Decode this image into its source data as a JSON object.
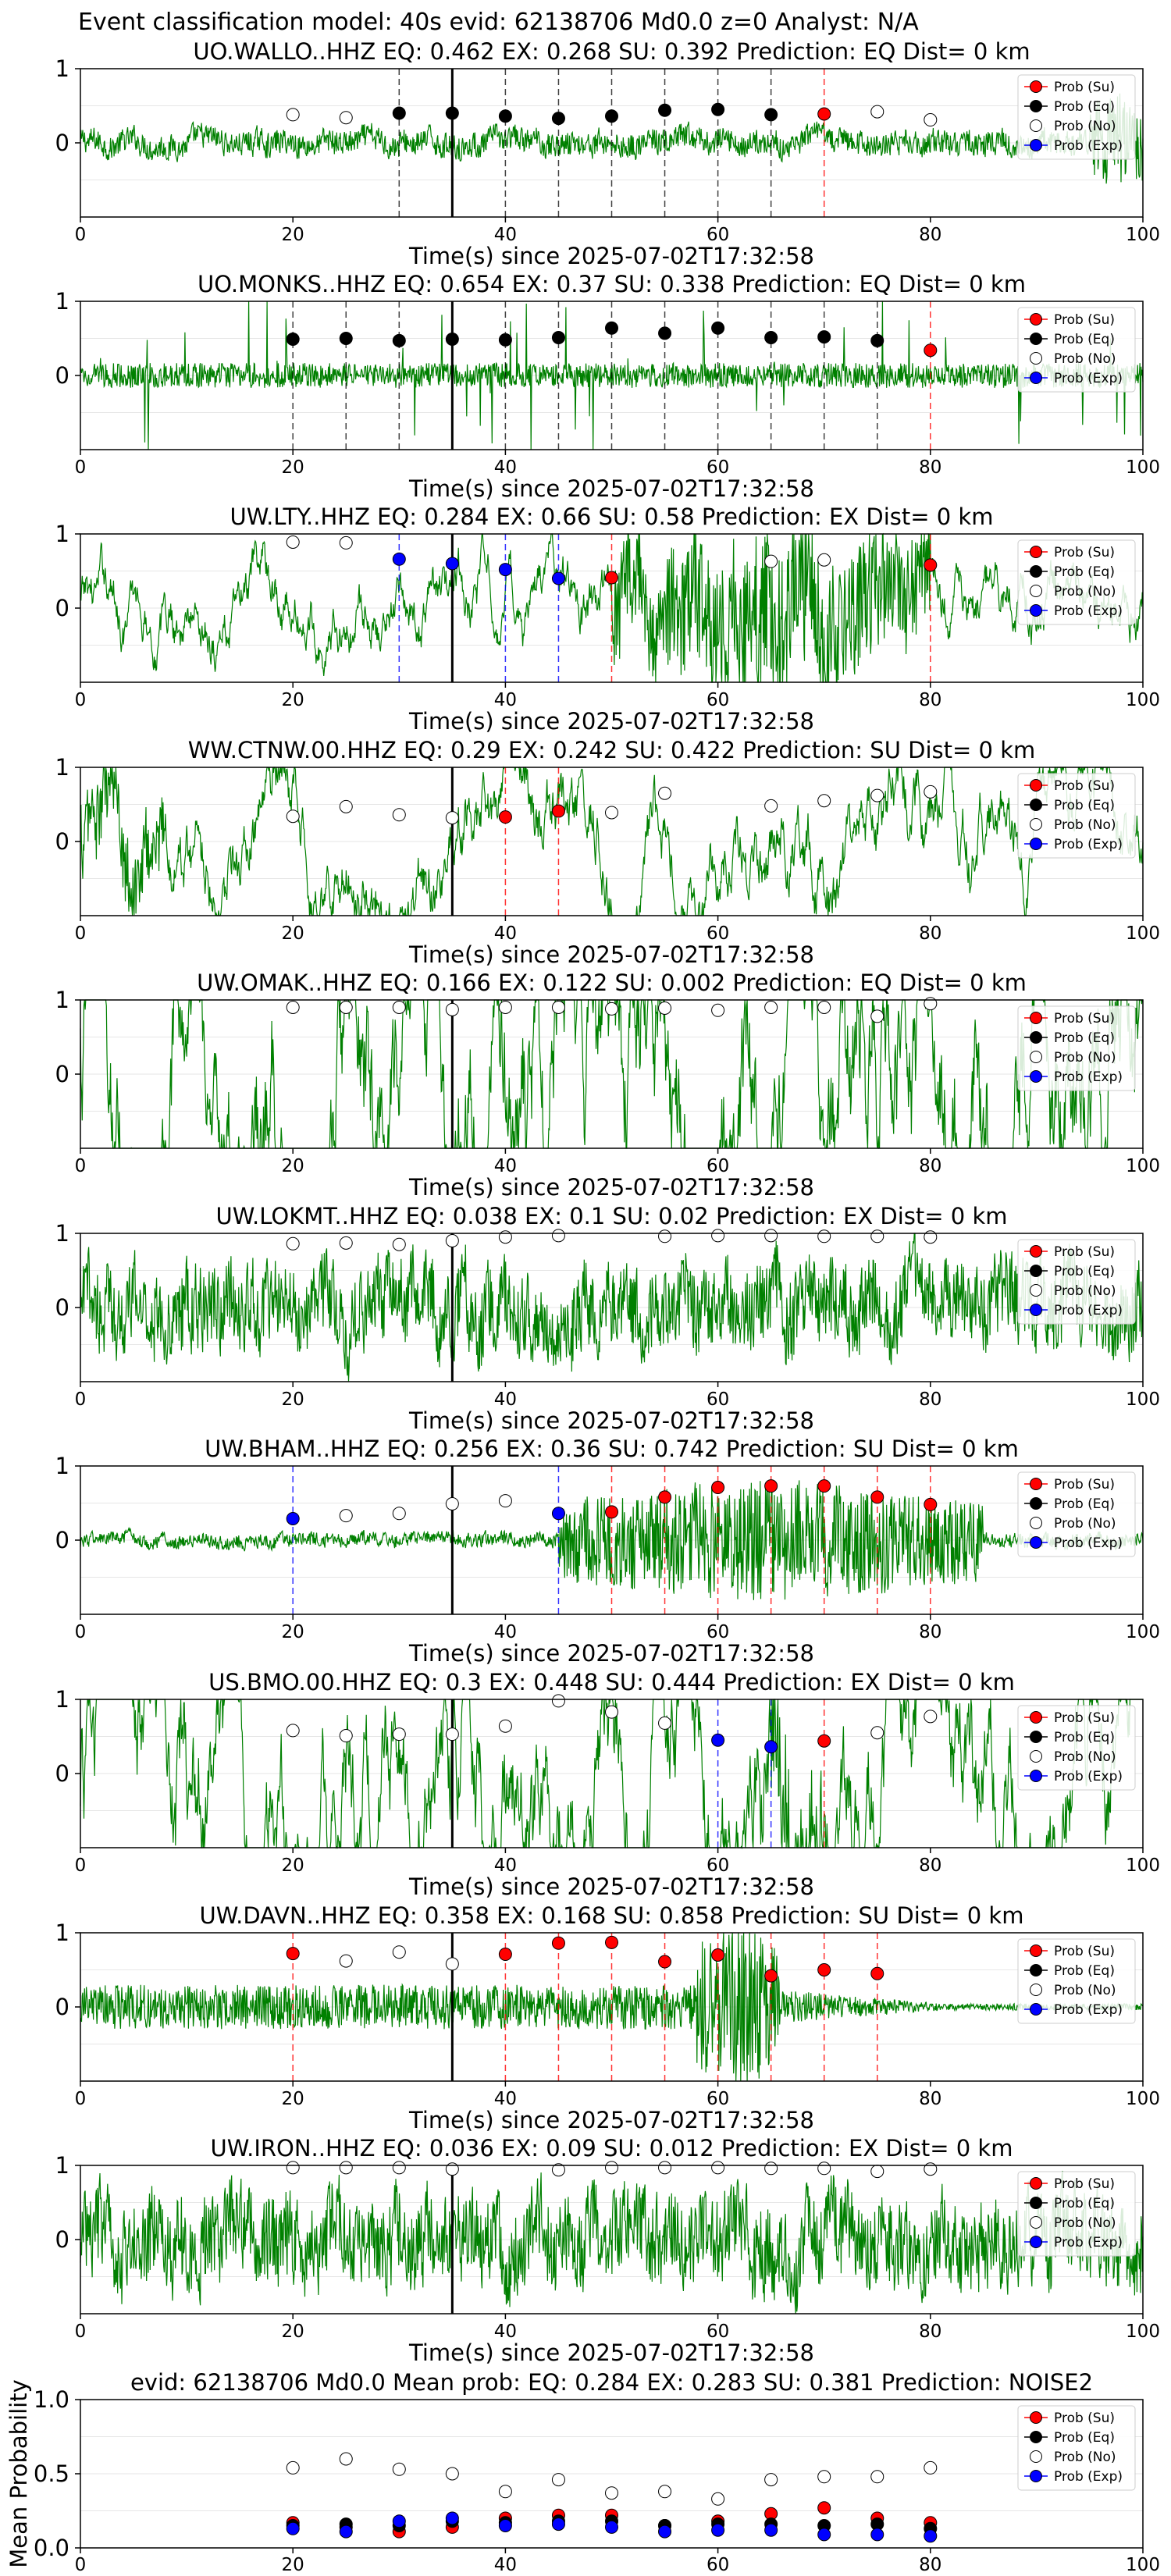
{
  "figure": {
    "suptitle": "Event classification model: 40s evid: 62138706 Md0.0 z=0 Analyst: N/A",
    "colors": {
      "waveform": "#008000",
      "su": "#ff0000",
      "eq": "#000000",
      "no": "#ffffff",
      "exp": "#0000ff",
      "arrival_line": "#000000"
    },
    "legend": [
      "Prob (Su)",
      "Prob (Eq)",
      "Prob (No)",
      "Prob (Exp)"
    ],
    "legend_placement": "top-right",
    "xlabel": "Time(s) since 2025-07-02T17:32:58",
    "x_ticks": [
      0,
      20,
      40,
      60,
      80,
      100
    ],
    "y_ticks": [
      0,
      1
    ],
    "arrival_time": 35
  },
  "chart_data": [
    {
      "type": "line",
      "title": "UO.WALLO..HHZ   EQ: 0.462   EX: 0.268   SU: 0.392   Prediction: EQ    Dist= 0 km",
      "xlim": [
        0,
        100
      ],
      "ylim": [
        -1,
        1
      ],
      "waveform": {
        "amp": 0.18,
        "style": "noise",
        "burst": [
          95,
          100,
          0.5
        ]
      },
      "points": [
        {
          "t": 20,
          "cls": "no",
          "p": 0.38
        },
        {
          "t": 25,
          "cls": "no",
          "p": 0.34
        },
        {
          "t": 30,
          "cls": "eq",
          "p": 0.4
        },
        {
          "t": 35,
          "cls": "eq",
          "p": 0.4
        },
        {
          "t": 40,
          "cls": "eq",
          "p": 0.36
        },
        {
          "t": 45,
          "cls": "eq",
          "p": 0.33
        },
        {
          "t": 50,
          "cls": "eq",
          "p": 0.36
        },
        {
          "t": 55,
          "cls": "eq",
          "p": 0.44
        },
        {
          "t": 60,
          "cls": "eq",
          "p": 0.45
        },
        {
          "t": 65,
          "cls": "eq",
          "p": 0.38
        },
        {
          "t": 70,
          "cls": "su",
          "p": 0.39
        },
        {
          "t": 75,
          "cls": "no",
          "p": 0.42
        },
        {
          "t": 80,
          "cls": "no",
          "p": 0.31
        }
      ]
    },
    {
      "type": "line",
      "title": "UO.MONKS..HHZ   EQ: 0.654   EX: 0.37   SU: 0.338   Prediction: EQ    Dist= 0 km",
      "xlim": [
        0,
        100
      ],
      "ylim": [
        -1,
        1
      ],
      "waveform": {
        "amp": 0.28,
        "style": "spiky",
        "burst": [
          0,
          0,
          0
        ]
      },
      "points": [
        {
          "t": 20,
          "cls": "eq",
          "p": 0.49
        },
        {
          "t": 25,
          "cls": "eq",
          "p": 0.5
        },
        {
          "t": 30,
          "cls": "eq",
          "p": 0.47
        },
        {
          "t": 35,
          "cls": "eq",
          "p": 0.49
        },
        {
          "t": 40,
          "cls": "eq",
          "p": 0.48
        },
        {
          "t": 45,
          "cls": "eq",
          "p": 0.51
        },
        {
          "t": 50,
          "cls": "eq",
          "p": 0.64
        },
        {
          "t": 55,
          "cls": "eq",
          "p": 0.57
        },
        {
          "t": 60,
          "cls": "eq",
          "p": 0.64
        },
        {
          "t": 65,
          "cls": "eq",
          "p": 0.51
        },
        {
          "t": 70,
          "cls": "eq",
          "p": 0.52
        },
        {
          "t": 75,
          "cls": "eq",
          "p": 0.47
        },
        {
          "t": 80,
          "cls": "su",
          "p": 0.34
        }
      ]
    },
    {
      "type": "line",
      "title": "UW.LTY..HHZ   EQ: 0.284   EX: 0.66   SU: 0.58   Prediction: EX    Dist= 0 km",
      "xlim": [
        0,
        100
      ],
      "ylim": [
        -1,
        1
      ],
      "waveform": {
        "amp": 0.15,
        "style": "smooth",
        "burst": [
          50,
          80,
          0.9
        ]
      },
      "points": [
        {
          "t": 20,
          "cls": "no",
          "p": 0.89
        },
        {
          "t": 25,
          "cls": "no",
          "p": 0.88
        },
        {
          "t": 30,
          "cls": "exp",
          "p": 0.66
        },
        {
          "t": 35,
          "cls": "exp",
          "p": 0.6
        },
        {
          "t": 40,
          "cls": "exp",
          "p": 0.52
        },
        {
          "t": 45,
          "cls": "exp",
          "p": 0.4
        },
        {
          "t": 50,
          "cls": "su",
          "p": 0.41
        },
        {
          "t": 65,
          "cls": "no",
          "p": 0.63
        },
        {
          "t": 70,
          "cls": "no",
          "p": 0.65
        },
        {
          "t": 80,
          "cls": "su",
          "p": 0.58
        }
      ]
    },
    {
      "type": "line",
      "title": "WW.CTNW.00.HHZ   EQ: 0.29   EX: 0.242   SU: 0.422   Prediction: SU    Dist= 0 km",
      "xlim": [
        0,
        100
      ],
      "ylim": [
        -1,
        1
      ],
      "waveform": {
        "amp": 0.2,
        "style": "smooth",
        "burst": [
          0,
          8,
          0.4
        ]
      },
      "points": [
        {
          "t": 20,
          "cls": "no",
          "p": 0.34
        },
        {
          "t": 25,
          "cls": "no",
          "p": 0.47
        },
        {
          "t": 30,
          "cls": "no",
          "p": 0.36
        },
        {
          "t": 35,
          "cls": "no",
          "p": 0.32
        },
        {
          "t": 40,
          "cls": "su",
          "p": 0.33
        },
        {
          "t": 45,
          "cls": "su",
          "p": 0.41
        },
        {
          "t": 50,
          "cls": "no",
          "p": 0.39
        },
        {
          "t": 55,
          "cls": "no",
          "p": 0.65
        },
        {
          "t": 65,
          "cls": "no",
          "p": 0.48
        },
        {
          "t": 70,
          "cls": "no",
          "p": 0.55
        },
        {
          "t": 75,
          "cls": "no",
          "p": 0.62
        },
        {
          "t": 80,
          "cls": "no",
          "p": 0.67
        }
      ]
    },
    {
      "type": "line",
      "title": "UW.OMAK..HHZ   EQ: 0.166   EX: 0.122   SU: 0.002   Prediction: EQ    Dist= 0 km",
      "xlim": [
        0,
        100
      ],
      "ylim": [
        -1,
        1
      ],
      "waveform": {
        "amp": 0.55,
        "style": "smooth",
        "burst": [
          0,
          0,
          0
        ]
      },
      "points": [
        {
          "t": 20,
          "cls": "no",
          "p": 0.9
        },
        {
          "t": 25,
          "cls": "no",
          "p": 0.9
        },
        {
          "t": 30,
          "cls": "no",
          "p": 0.9
        },
        {
          "t": 35,
          "cls": "no",
          "p": 0.87
        },
        {
          "t": 40,
          "cls": "no",
          "p": 0.9
        },
        {
          "t": 45,
          "cls": "no",
          "p": 0.9
        },
        {
          "t": 50,
          "cls": "no",
          "p": 0.88
        },
        {
          "t": 55,
          "cls": "no",
          "p": 0.89
        },
        {
          "t": 60,
          "cls": "no",
          "p": 0.86
        },
        {
          "t": 65,
          "cls": "no",
          "p": 0.9
        },
        {
          "t": 70,
          "cls": "no",
          "p": 0.9
        },
        {
          "t": 75,
          "cls": "no",
          "p": 0.78
        },
        {
          "t": 80,
          "cls": "no",
          "p": 0.95
        }
      ]
    },
    {
      "type": "line",
      "title": "UW.LOKMT..HHZ   EQ: 0.038   EX: 0.1   SU: 0.02   Prediction: EX    Dist= 0 km",
      "xlim": [
        0,
        100
      ],
      "ylim": [
        -1,
        1
      ],
      "waveform": {
        "amp": 0.6,
        "style": "noise",
        "burst": [
          0,
          0,
          0
        ]
      },
      "points": [
        {
          "t": 20,
          "cls": "no",
          "p": 0.86
        },
        {
          "t": 25,
          "cls": "no",
          "p": 0.87
        },
        {
          "t": 30,
          "cls": "no",
          "p": 0.85
        },
        {
          "t": 35,
          "cls": "no",
          "p": 0.9
        },
        {
          "t": 40,
          "cls": "no",
          "p": 0.95
        },
        {
          "t": 45,
          "cls": "no",
          "p": 0.97
        },
        {
          "t": 55,
          "cls": "no",
          "p": 0.96
        },
        {
          "t": 60,
          "cls": "no",
          "p": 0.97
        },
        {
          "t": 65,
          "cls": "no",
          "p": 0.97
        },
        {
          "t": 70,
          "cls": "no",
          "p": 0.96
        },
        {
          "t": 75,
          "cls": "no",
          "p": 0.96
        },
        {
          "t": 80,
          "cls": "no",
          "p": 0.95
        }
      ]
    },
    {
      "type": "line",
      "title": "UW.BHAM..HHZ   EQ: 0.256   EX: 0.36   SU: 0.742   Prediction: SU    Dist= 0 km",
      "xlim": [
        0,
        100
      ],
      "ylim": [
        -1,
        1
      ],
      "waveform": {
        "amp": 0.1,
        "style": "noise",
        "burst": [
          45,
          85,
          0.75
        ]
      },
      "points": [
        {
          "t": 20,
          "cls": "exp",
          "p": 0.29
        },
        {
          "t": 25,
          "cls": "no",
          "p": 0.33
        },
        {
          "t": 30,
          "cls": "no",
          "p": 0.36
        },
        {
          "t": 35,
          "cls": "no",
          "p": 0.49
        },
        {
          "t": 40,
          "cls": "no",
          "p": 0.53
        },
        {
          "t": 45,
          "cls": "exp",
          "p": 0.36
        },
        {
          "t": 50,
          "cls": "su",
          "p": 0.38
        },
        {
          "t": 55,
          "cls": "su",
          "p": 0.58
        },
        {
          "t": 60,
          "cls": "su",
          "p": 0.71
        },
        {
          "t": 65,
          "cls": "su",
          "p": 0.73
        },
        {
          "t": 70,
          "cls": "su",
          "p": 0.73
        },
        {
          "t": 75,
          "cls": "su",
          "p": 0.58
        },
        {
          "t": 80,
          "cls": "su",
          "p": 0.48
        }
      ]
    },
    {
      "type": "line",
      "title": "US.BMO.00.HHZ   EQ: 0.3   EX: 0.448   SU: 0.444   Prediction: EX    Dist= 0 km",
      "xlim": [
        0,
        100
      ],
      "ylim": [
        -1,
        1
      ],
      "waveform": {
        "amp": 0.4,
        "style": "smooth",
        "burst": [
          65,
          70,
          0.8
        ]
      },
      "points": [
        {
          "t": 20,
          "cls": "no",
          "p": 0.58
        },
        {
          "t": 25,
          "cls": "no",
          "p": 0.51
        },
        {
          "t": 30,
          "cls": "no",
          "p": 0.53
        },
        {
          "t": 35,
          "cls": "no",
          "p": 0.53
        },
        {
          "t": 40,
          "cls": "no",
          "p": 0.64
        },
        {
          "t": 45,
          "cls": "no",
          "p": 0.98
        },
        {
          "t": 50,
          "cls": "no",
          "p": 0.83
        },
        {
          "t": 55,
          "cls": "no",
          "p": 0.68
        },
        {
          "t": 60,
          "cls": "exp",
          "p": 0.45
        },
        {
          "t": 65,
          "cls": "exp",
          "p": 0.36
        },
        {
          "t": 70,
          "cls": "su",
          "p": 0.44
        },
        {
          "t": 75,
          "cls": "no",
          "p": 0.55
        },
        {
          "t": 80,
          "cls": "no",
          "p": 0.77
        }
      ]
    },
    {
      "type": "line",
      "title": "UW.DAVN..HHZ   EQ: 0.358   EX: 0.168   SU: 0.858   Prediction: SU    Dist= 0 km",
      "xlim": [
        0,
        100
      ],
      "ylim": [
        -1,
        1
      ],
      "waveform": {
        "amp": 0.2,
        "style": "decay",
        "burst": [
          58,
          66,
          0.9
        ]
      },
      "points": [
        {
          "t": 20,
          "cls": "su",
          "p": 0.72
        },
        {
          "t": 25,
          "cls": "no",
          "p": 0.62
        },
        {
          "t": 30,
          "cls": "no",
          "p": 0.74
        },
        {
          "t": 35,
          "cls": "no",
          "p": 0.58
        },
        {
          "t": 40,
          "cls": "su",
          "p": 0.71
        },
        {
          "t": 45,
          "cls": "su",
          "p": 0.86
        },
        {
          "t": 50,
          "cls": "su",
          "p": 0.87
        },
        {
          "t": 55,
          "cls": "su",
          "p": 0.61
        },
        {
          "t": 60,
          "cls": "su",
          "p": 0.7
        },
        {
          "t": 65,
          "cls": "su",
          "p": 0.42
        },
        {
          "t": 70,
          "cls": "su",
          "p": 0.5
        },
        {
          "t": 75,
          "cls": "su",
          "p": 0.45
        }
      ]
    },
    {
      "type": "line",
      "title": "UW.IRON..HHZ   EQ: 0.036   EX: 0.09   SU: 0.012   Prediction: EX    Dist= 0 km",
      "xlim": [
        0,
        100
      ],
      "ylim": [
        -1,
        1
      ],
      "waveform": {
        "amp": 0.65,
        "style": "noise",
        "burst": [
          0,
          0,
          0
        ]
      },
      "points": [
        {
          "t": 20,
          "cls": "no",
          "p": 0.97
        },
        {
          "t": 25,
          "cls": "no",
          "p": 0.97
        },
        {
          "t": 30,
          "cls": "no",
          "p": 0.97
        },
        {
          "t": 35,
          "cls": "no",
          "p": 0.95
        },
        {
          "t": 45,
          "cls": "no",
          "p": 0.94
        },
        {
          "t": 50,
          "cls": "no",
          "p": 0.97
        },
        {
          "t": 55,
          "cls": "no",
          "p": 0.97
        },
        {
          "t": 60,
          "cls": "no",
          "p": 0.97
        },
        {
          "t": 65,
          "cls": "no",
          "p": 0.96
        },
        {
          "t": 70,
          "cls": "no",
          "p": 0.96
        },
        {
          "t": 75,
          "cls": "no",
          "p": 0.92
        },
        {
          "t": 80,
          "cls": "no",
          "p": 0.95
        }
      ]
    },
    {
      "type": "scatter",
      "title": "evid: 62138706   Md0.0    Mean prob:   EQ: 0.284   EX: 0.283   SU: 0.381    Prediction: NOISE2",
      "ylabel": "Mean Probability",
      "xlim": [
        0,
        100
      ],
      "ylim": [
        0,
        1
      ],
      "y_ticks": [
        0.0,
        0.5,
        1.0
      ],
      "y_tick_labels": [
        "0.0",
        "0.5",
        "1.0"
      ],
      "x": [
        20,
        25,
        30,
        35,
        40,
        45,
        50,
        55,
        60,
        65,
        70,
        75,
        80
      ],
      "series": [
        {
          "name": "Prob (Su)",
          "cls": "su",
          "values": [
            0.17,
            0.14,
            0.11,
            0.14,
            0.2,
            0.22,
            0.22,
            0.15,
            0.18,
            0.23,
            0.27,
            0.2,
            0.17
          ]
        },
        {
          "name": "Prob (Eq)",
          "cls": "eq",
          "values": [
            0.15,
            0.16,
            0.15,
            0.18,
            0.17,
            0.18,
            0.18,
            0.15,
            0.16,
            0.16,
            0.15,
            0.16,
            0.13
          ]
        },
        {
          "name": "Prob (No)",
          "cls": "no",
          "values": [
            0.54,
            0.6,
            0.53,
            0.5,
            0.38,
            0.46,
            0.37,
            0.38,
            0.33,
            0.46,
            0.48,
            0.48,
            0.54
          ]
        },
        {
          "name": "Prob (Exp)",
          "cls": "exp",
          "values": [
            0.13,
            0.11,
            0.18,
            0.2,
            0.15,
            0.16,
            0.14,
            0.11,
            0.12,
            0.12,
            0.09,
            0.09,
            0.08
          ]
        }
      ]
    }
  ]
}
